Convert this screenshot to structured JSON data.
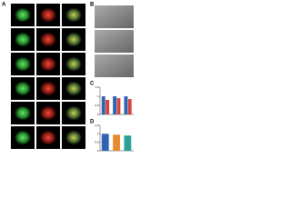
{
  "panels": {
    "a": "A",
    "b": "B",
    "c": "C",
    "d": "D"
  },
  "charts": [
    {
      "type": "bar",
      "categories": [
        null,
        null,
        null
      ],
      "series": [
        {
          "name": null,
          "color": "#2f62b0",
          "values": [
            1.0,
            1.0,
            1.0
          ]
        },
        {
          "name": null,
          "color": "#d6453d",
          "values": [
            0.8,
            0.9,
            0.85
          ]
        }
      ],
      "ylim": [
        0,
        1.5
      ],
      "yticks": [
        0,
        0.5,
        1,
        1.5
      ]
    },
    {
      "type": "bar",
      "categories": [
        null,
        null,
        null
      ],
      "series": [
        {
          "name": null,
          "color": "#2f62b0",
          "values": [
            1.0,
            0.95,
            0.9
          ]
        }
      ],
      "colors": [
        "#2f62b0",
        "#e58a2e",
        "#2aa198"
      ],
      "ylim": [
        0,
        1.5
      ],
      "yticks": [
        0,
        0.5,
        1,
        1.5
      ]
    }
  ]
}
